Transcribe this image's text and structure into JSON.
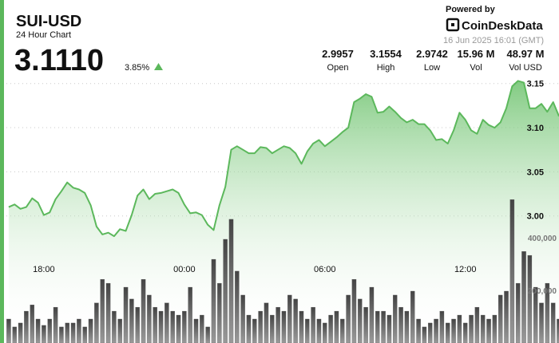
{
  "chart_data": {
    "type": "line",
    "title": "SUI-USD",
    "subtitle": "24 Hour Chart",
    "price": "3.1110",
    "change": "3.85%",
    "powered_by": "Powered by",
    "brand": "CoinDeskData",
    "timestamp": "16 Jun 2025 16:01 (GMT)",
    "stats": [
      {
        "value": "2.9957",
        "label": "Open"
      },
      {
        "value": "3.1554",
        "label": "High"
      },
      {
        "value": "2.9742",
        "label": "Low"
      },
      {
        "value": "15.96 M",
        "label": "Vol"
      },
      {
        "value": "48.97 M",
        "label": "Vol USD"
      }
    ],
    "x": [
      16.5,
      16.75,
      17,
      17.25,
      17.5,
      17.75,
      18,
      18.25,
      18.5,
      18.75,
      19,
      19.25,
      19.5,
      19.75,
      20,
      20.25,
      20.5,
      20.75,
      21,
      21.25,
      21.5,
      21.75,
      22,
      22.25,
      22.5,
      22.75,
      23,
      23.25,
      23.5,
      23.75,
      24,
      24.25,
      24.5,
      24.75,
      25,
      25.25,
      25.5,
      25.75,
      26,
      26.25,
      26.5,
      26.75,
      27,
      27.25,
      27.5,
      27.75,
      28,
      28.25,
      28.5,
      28.75,
      29,
      29.25,
      29.5,
      29.75,
      30,
      30.25,
      30.5,
      30.75,
      31,
      31.25,
      31.5,
      31.75,
      32,
      32.25,
      32.5,
      32.75,
      33,
      33.25,
      33.5,
      33.75,
      34,
      34.25,
      34.5,
      34.75,
      35,
      35.25,
      35.5,
      35.75,
      36,
      36.25,
      36.5,
      36.75,
      37,
      37.25,
      37.5,
      37.75,
      38,
      38.25,
      38.5,
      38.75,
      39,
      39.25,
      39.5,
      39.75,
      40
    ],
    "xlim": [
      16.4,
      40
    ],
    "xticks": [
      {
        "value": 18,
        "label": "18:00"
      },
      {
        "value": 24,
        "label": "00:00"
      },
      {
        "value": 30,
        "label": "06:00"
      },
      {
        "value": 36,
        "label": "12:00"
      }
    ],
    "ylim": [
      2.856,
      3.157
    ],
    "yticks": [
      3.15,
      {
        "value": 3.1,
        "label": "3.10"
      },
      3.05,
      {
        "value": 3,
        "label": "3.00"
      }
    ],
    "y2lim": [
      0,
      1009000
    ],
    "y2ticks": [
      {
        "value": 200000,
        "label": "200,000"
      },
      {
        "value": 400000,
        "label": "400,000"
      }
    ],
    "grid": true,
    "series": [
      {
        "type": "line",
        "color": "#5cb85c",
        "fill": "#8fd18f",
        "values": [
          3.01,
          3.013,
          3.008,
          3.01,
          3.02,
          3.015,
          3.001,
          3.004,
          3.019,
          3.028,
          3.038,
          3.032,
          3.03,
          3.026,
          3.012,
          2.988,
          2.979,
          2.981,
          2.977,
          2.985,
          2.983,
          3.001,
          3.023,
          3.03,
          3.019,
          3.025,
          3.026,
          3.028,
          3.03,
          3.026,
          3.013,
          3.003,
          3.004,
          3.001,
          2.99,
          2.984,
          3.012,
          3.033,
          3.075,
          3.079,
          3.075,
          3.071,
          3.071,
          3.078,
          3.077,
          3.071,
          3.075,
          3.079,
          3.077,
          3.071,
          3.059,
          3.073,
          3.082,
          3.086,
          3.079,
          3.084,
          3.089,
          3.095,
          3.1,
          3.129,
          3.133,
          3.138,
          3.135,
          3.117,
          3.118,
          3.124,
          3.118,
          3.111,
          3.106,
          3.109,
          3.104,
          3.104,
          3.097,
          3.086,
          3.087,
          3.082,
          3.097,
          3.117,
          3.109,
          3.097,
          3.093,
          3.109,
          3.103,
          3.1,
          3.106,
          3.122,
          3.147,
          3.153,
          3.151,
          3.122,
          3.122,
          3.127,
          3.118,
          3.129,
          3.113
        ]
      },
      {
        "type": "bar",
        "axis": "y2",
        "color": "#666666",
        "values": [
          91000,
          61000,
          76000,
          121000,
          145000,
          91000,
          67000,
          91000,
          136000,
          61000,
          76000,
          76000,
          91000,
          61000,
          91000,
          152000,
          242000,
          227000,
          121000,
          91000,
          212000,
          167000,
          136000,
          242000,
          182000,
          136000,
          121000,
          152000,
          121000,
          106000,
          121000,
          212000,
          91000,
          106000,
          61000,
          318000,
          227000,
          394000,
          470000,
          273000,
          182000,
          106000,
          91000,
          121000,
          152000,
          106000,
          136000,
          121000,
          182000,
          167000,
          121000,
          91000,
          136000,
          91000,
          76000,
          106000,
          121000,
          91000,
          182000,
          242000,
          167000,
          136000,
          212000,
          121000,
          121000,
          106000,
          182000,
          136000,
          121000,
          197000,
          91000,
          61000,
          76000,
          91000,
          121000,
          76000,
          91000,
          106000,
          76000,
          106000,
          136000,
          106000,
          91000,
          106000,
          182000,
          197000,
          545000,
          227000,
          348000,
          333000,
          212000,
          152000,
          227000,
          152000,
          91000
        ]
      }
    ]
  }
}
